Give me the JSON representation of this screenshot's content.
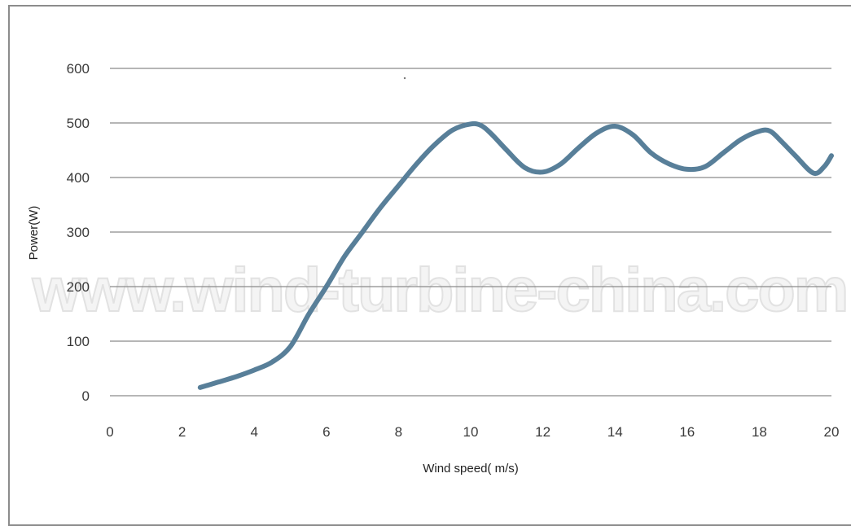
{
  "watermark_text": "www.wind-turbine-china.com",
  "colors": {
    "series": "#587f99",
    "grid": "#8a8a8a",
    "frame": "#8c8c8c"
  },
  "chart_data": {
    "type": "line",
    "title": "",
    "xlabel": "Wind speed( m/s)",
    "ylabel": "Power(W)",
    "xlim": [
      0,
      20
    ],
    "ylim": [
      0,
      600
    ],
    "x_ticks": [
      "0",
      "2",
      "4",
      "6",
      "8",
      "10",
      "12",
      "14",
      "16",
      "18",
      "20"
    ],
    "y_ticks": [
      "0",
      "100",
      "200",
      "300",
      "400",
      "500",
      "600"
    ],
    "grid": "horizontal",
    "legend": "none",
    "series": [
      {
        "x": [
          2.5,
          3.0,
          3.5,
          4.0,
          4.5,
          5.0,
          5.5,
          6.0,
          6.5,
          7.0,
          7.5,
          8.0,
          8.5,
          9.0,
          9.5,
          10.0,
          10.3,
          10.6,
          11.0,
          11.5,
          12.0,
          12.5,
          13.0,
          13.5,
          14.0,
          14.5,
          15.0,
          15.5,
          16.0,
          16.5,
          17.0,
          17.5,
          18.0,
          18.3,
          18.6,
          19.0,
          19.5,
          19.8,
          20.0
        ],
        "y": [
          15,
          25,
          35,
          47,
          62,
          90,
          148,
          200,
          255,
          300,
          345,
          385,
          425,
          460,
          487,
          498,
          495,
          478,
          450,
          418,
          410,
          425,
          455,
          482,
          494,
          478,
          445,
          425,
          415,
          420,
          445,
          470,
          485,
          485,
          467,
          440,
          408,
          420,
          440
        ]
      }
    ]
  }
}
